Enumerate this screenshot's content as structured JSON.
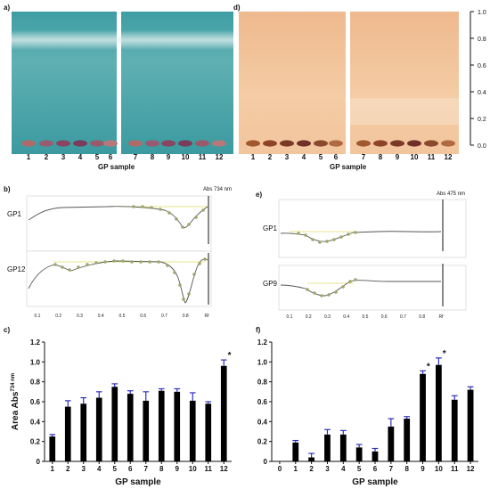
{
  "panels": {
    "a": {
      "letter": "a)",
      "lanes": [
        "1",
        "2",
        "3",
        "4",
        "5",
        "6",
        "7",
        "8",
        "9",
        "10",
        "11",
        "12"
      ],
      "xlabel": "GP sample"
    },
    "d": {
      "letter": "d)",
      "lanes": [
        "1",
        "2",
        "3",
        "4",
        "5",
        "6",
        "7",
        "8",
        "9",
        "10",
        "11",
        "12"
      ],
      "xlabel": "GP sample",
      "rf_ticks": [
        "1.0",
        "0.8",
        "0.6",
        "0.4",
        "0.2",
        "0.0"
      ]
    },
    "b": {
      "letter": "b)",
      "abs_label": "Abs 734 nm",
      "track1": "GP1",
      "track2": "GP12",
      "x_ticks": [
        "0.1",
        "0.2",
        "0.3",
        "0.4",
        "0.5",
        "0.6",
        "0.7",
        "0.8",
        "Rf"
      ]
    },
    "e": {
      "letter": "e)",
      "abs_label": "Abs 475 nm",
      "track1": "GP1",
      "track2": "GP9",
      "x_ticks": [
        "0.1",
        "0.2",
        "0.3",
        "0.4",
        "0.5",
        "0.6",
        "0.7",
        "0.8",
        "Rf"
      ]
    },
    "c": {
      "letter": "c)"
    },
    "f": {
      "letter": "f)"
    }
  },
  "colors": {
    "bar_fill": "#000000",
    "error_bar": "#3030c0",
    "plate_a": "#4aa3a6",
    "plate_d": "#f0c59a",
    "densitogram_line": "#555555",
    "baseline": "#e6e68a",
    "peak_marker": "#9aa86b"
  },
  "chart_data": [
    {
      "id": "c",
      "type": "bar",
      "title": "",
      "xlabel": "GP sample",
      "ylabel": "Area Abs734 nm",
      "ylabel_main": "Area Abs",
      "ylabel_sup": "734 nm",
      "categories": [
        "1",
        "2",
        "3",
        "4",
        "5",
        "6",
        "7",
        "8",
        "9",
        "10",
        "11",
        "12"
      ],
      "values": [
        0.25,
        0.55,
        0.58,
        0.64,
        0.75,
        0.68,
        0.61,
        0.71,
        0.7,
        0.61,
        0.58,
        0.96
      ],
      "errors": [
        0.02,
        0.06,
        0.06,
        0.06,
        0.03,
        0.03,
        0.09,
        0.02,
        0.03,
        0.08,
        0.02,
        0.06
      ],
      "annotations": [
        {
          "category": "12",
          "text": "*"
        }
      ],
      "ylim": [
        0,
        1.2
      ],
      "yticks": [
        "0",
        "0.2",
        "0.4",
        "0.6",
        "0.8",
        "1.0",
        "1.2"
      ],
      "grid": false,
      "legend": "none"
    },
    {
      "id": "f",
      "type": "bar",
      "title": "",
      "xlabel": "GP sample",
      "ylabel": "Area Abs475 nm",
      "ylabel_main": "Area Abs",
      "ylabel_sup": "475 nm",
      "categories": [
        "0",
        "1",
        "2",
        "3",
        "4",
        "5",
        "6",
        "7",
        "8",
        "9",
        "10",
        "11",
        "12"
      ],
      "values": [
        null,
        0.19,
        0.04,
        0.27,
        0.27,
        0.14,
        0.1,
        0.35,
        0.43,
        0.88,
        0.97,
        0.62,
        0.72
      ],
      "errors": [
        null,
        0.02,
        0.04,
        0.05,
        0.04,
        0.03,
        0.03,
        0.08,
        0.02,
        0.03,
        0.07,
        0.04,
        0.03
      ],
      "annotations": [
        {
          "category": "9",
          "text": "*"
        },
        {
          "category": "10",
          "text": "*"
        }
      ],
      "ylim": [
        0,
        1.2
      ],
      "yticks": [
        "0",
        "0.2",
        "0.4",
        "0.6",
        "0.8",
        "1.0",
        "1.2"
      ],
      "grid": false,
      "legend": "none"
    }
  ]
}
